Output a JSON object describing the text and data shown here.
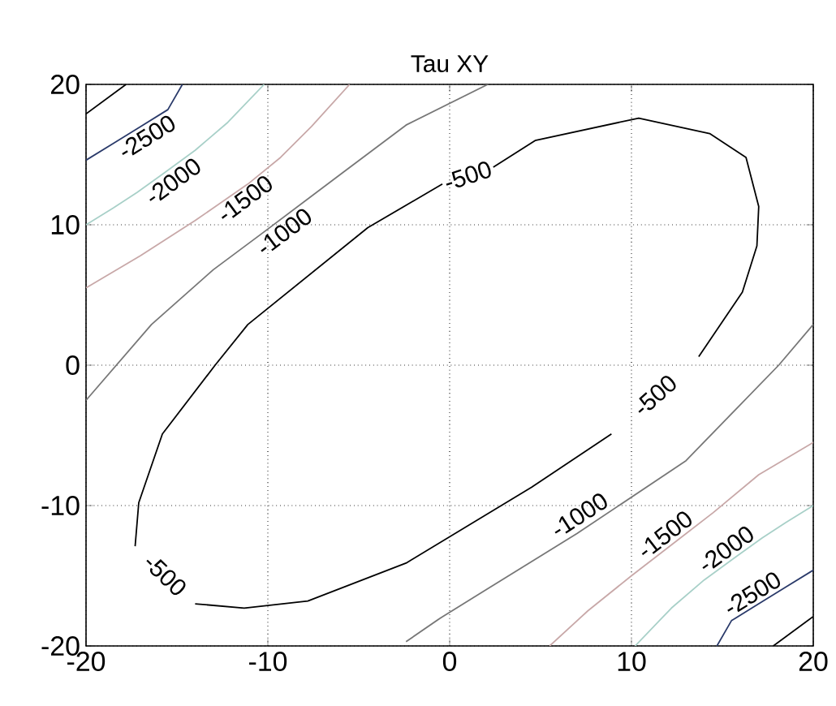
{
  "chart_data": {
    "type": "line",
    "title": "Tau XY",
    "xlim": [
      -20,
      20
    ],
    "ylim": [
      -20,
      20
    ],
    "xticks": [
      -20,
      -10,
      0,
      10,
      20
    ],
    "yticks": [
      -20,
      -10,
      0,
      10,
      20
    ],
    "grid": true,
    "series": [
      {
        "name": "-500",
        "color": "#000000",
        "x": [
          -17.3,
          -17.1,
          -15.8,
          -12.9,
          -11.1,
          -4.5,
          -0.4
        ],
        "values": [
          -12.9,
          -9.8,
          -4.9,
          0,
          2.9,
          9.8,
          12.9
        ]
      },
      {
        "name": "-500",
        "color": "#000000",
        "x": [
          2.4,
          4.7,
          10.4,
          14.3,
          16.3,
          17.0,
          16.9,
          16.1,
          13.7
        ],
        "values": [
          14.1,
          16.0,
          17.6,
          16.5,
          14.8,
          11.3,
          8.5,
          5.2,
          0.6
        ]
      },
      {
        "name": "-500",
        "color": "#000000",
        "x": [
          8.9,
          4.5,
          -2.4,
          -7.8,
          -11.3,
          -14.0
        ],
        "values": [
          -4.9,
          -8.7,
          -14.1,
          -16.8,
          -17.3,
          -17.0
        ]
      },
      {
        "name": "-1000",
        "color": "#777777",
        "x": [
          -20,
          -16.4,
          -13,
          -10.2,
          -6,
          -2.4,
          2.1
        ],
        "values": [
          -2.5,
          2.9,
          6.8,
          9.5,
          13.6,
          17.1,
          20
        ]
      },
      {
        "name": "-1000",
        "color": "#777777",
        "x": [
          20,
          18.1,
          13,
          7,
          2,
          -0.5,
          -2.4
        ],
        "values": [
          2.9,
          0,
          -6.8,
          -12,
          -16,
          -18,
          -19.7
        ]
      },
      {
        "name": "-1500",
        "color": "#c8a8a8",
        "x": [
          -20,
          -17,
          -14,
          -11.1,
          -9.3,
          -7.6,
          -5.5
        ],
        "values": [
          5.5,
          7.8,
          10.3,
          12.9,
          14.8,
          17.0,
          20
        ]
      },
      {
        "name": "-1500",
        "color": "#c8a8a8",
        "x": [
          20,
          17,
          14.5,
          12.5,
          10,
          7.6,
          5.5
        ],
        "values": [
          -5.5,
          -7.8,
          -10.5,
          -12.5,
          -15,
          -17.5,
          -20
        ]
      },
      {
        "name": "-2000",
        "color": "#a8d0c8",
        "x": [
          -20,
          -18.5,
          -17.2,
          -15.8,
          -14,
          -12.2,
          -10.2
        ],
        "values": [
          10,
          11.2,
          12.3,
          13.6,
          15.3,
          17.3,
          20
        ]
      },
      {
        "name": "-2000",
        "color": "#a8d0c8",
        "x": [
          20,
          18.5,
          17.2,
          15.8,
          14,
          12.2,
          10.2
        ],
        "values": [
          -10,
          -11.2,
          -12.3,
          -13.6,
          -15.3,
          -17.3,
          -20
        ]
      },
      {
        "name": "-2500",
        "color": "#2a3a6a",
        "x": [
          -20,
          -18.5,
          -17,
          -15.5,
          -14.7
        ],
        "values": [
          14.6,
          15.8,
          17,
          18.2,
          20
        ]
      },
      {
        "name": "-2500",
        "color": "#2a3a6a",
        "x": [
          20,
          18.5,
          17,
          15.5,
          14.7
        ],
        "values": [
          -14.6,
          -15.8,
          -17,
          -18.2,
          -20
        ]
      },
      {
        "color": "#000000",
        "x": [
          -20,
          -17.8
        ],
        "values": [
          17.9,
          20
        ]
      },
      {
        "color": "#000000",
        "x": [
          17.8,
          20
        ],
        "values": [
          -20,
          -17.9
        ]
      }
    ]
  }
}
